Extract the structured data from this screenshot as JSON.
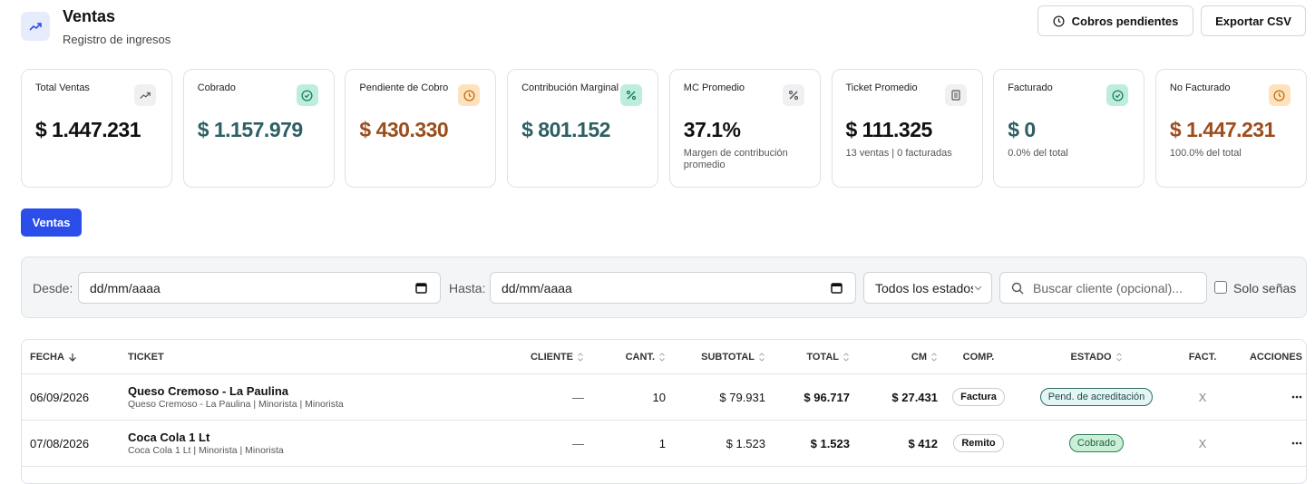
{
  "header": {
    "title": "Ventas",
    "subtitle": "Registro de ingresos",
    "buttons": [
      "Cobros pendientes",
      "Exportar CSV"
    ]
  },
  "cards": [
    {
      "label": "Total Ventas",
      "value": "$ 1.447.231"
    },
    {
      "label": "Cobrado",
      "value": "$ 1.157.979"
    },
    {
      "label": "Pendiente de Cobro",
      "value": "$ 430.330"
    },
    {
      "label": "Contribución Marginal",
      "value": "$ 801.152"
    },
    {
      "label": "MC Promedio",
      "value": "37.1%",
      "note": "Margen de contribución promedio"
    },
    {
      "label": "Ticket Promedio",
      "value": "$ 111.325",
      "note": "13 ventas | 0 facturadas"
    },
    {
      "label": "Facturado",
      "value": "$ 0",
      "note": "0.0% del total"
    },
    {
      "label": "No Facturado",
      "value": "$ 1.447.231",
      "note": "100.0% del total"
    }
  ],
  "tab": "Ventas",
  "filters": {
    "desde_label": "Desde:",
    "desde_value": "dd/mm/aaaa",
    "hasta_label": "Hasta:",
    "hasta_value": "dd/mm/aaaa",
    "estado": "Todos los estados",
    "search_placeholder": "Buscar cliente (opcional)...",
    "checkbox": "Solo señas"
  },
  "table": {
    "columns": [
      "FECHA",
      "TICKET",
      "CLIENTE",
      "CANT.",
      "SUBTOTAL",
      "TOTAL",
      "CM",
      "COMP.",
      "ESTADO",
      "FACT.",
      "ACCIONES"
    ],
    "rows": [
      {
        "fecha": "06/09/2026",
        "ticket": "Queso Cremoso - La Paulina",
        "detalle": "Queso Cremoso - La Paulina | Minorista | Minorista",
        "cliente": "—",
        "cant": "10",
        "subtotal": "$ 79.931",
        "total": "$ 96.717",
        "cm": "$ 27.431",
        "comp": "Factura",
        "estado": "Pend. de acreditación",
        "fact": "X"
      },
      {
        "fecha": "07/08/2026",
        "ticket": "Coca Cola 1 Lt",
        "detalle": "Coca Cola 1 Lt | Minorista | Minorista",
        "cliente": "—",
        "cant": "1",
        "subtotal": "$ 1.523",
        "total": "$ 1.523",
        "cm": "$ 412",
        "comp": "Remito",
        "estado": "Cobrado",
        "fact": "X"
      }
    ]
  }
}
